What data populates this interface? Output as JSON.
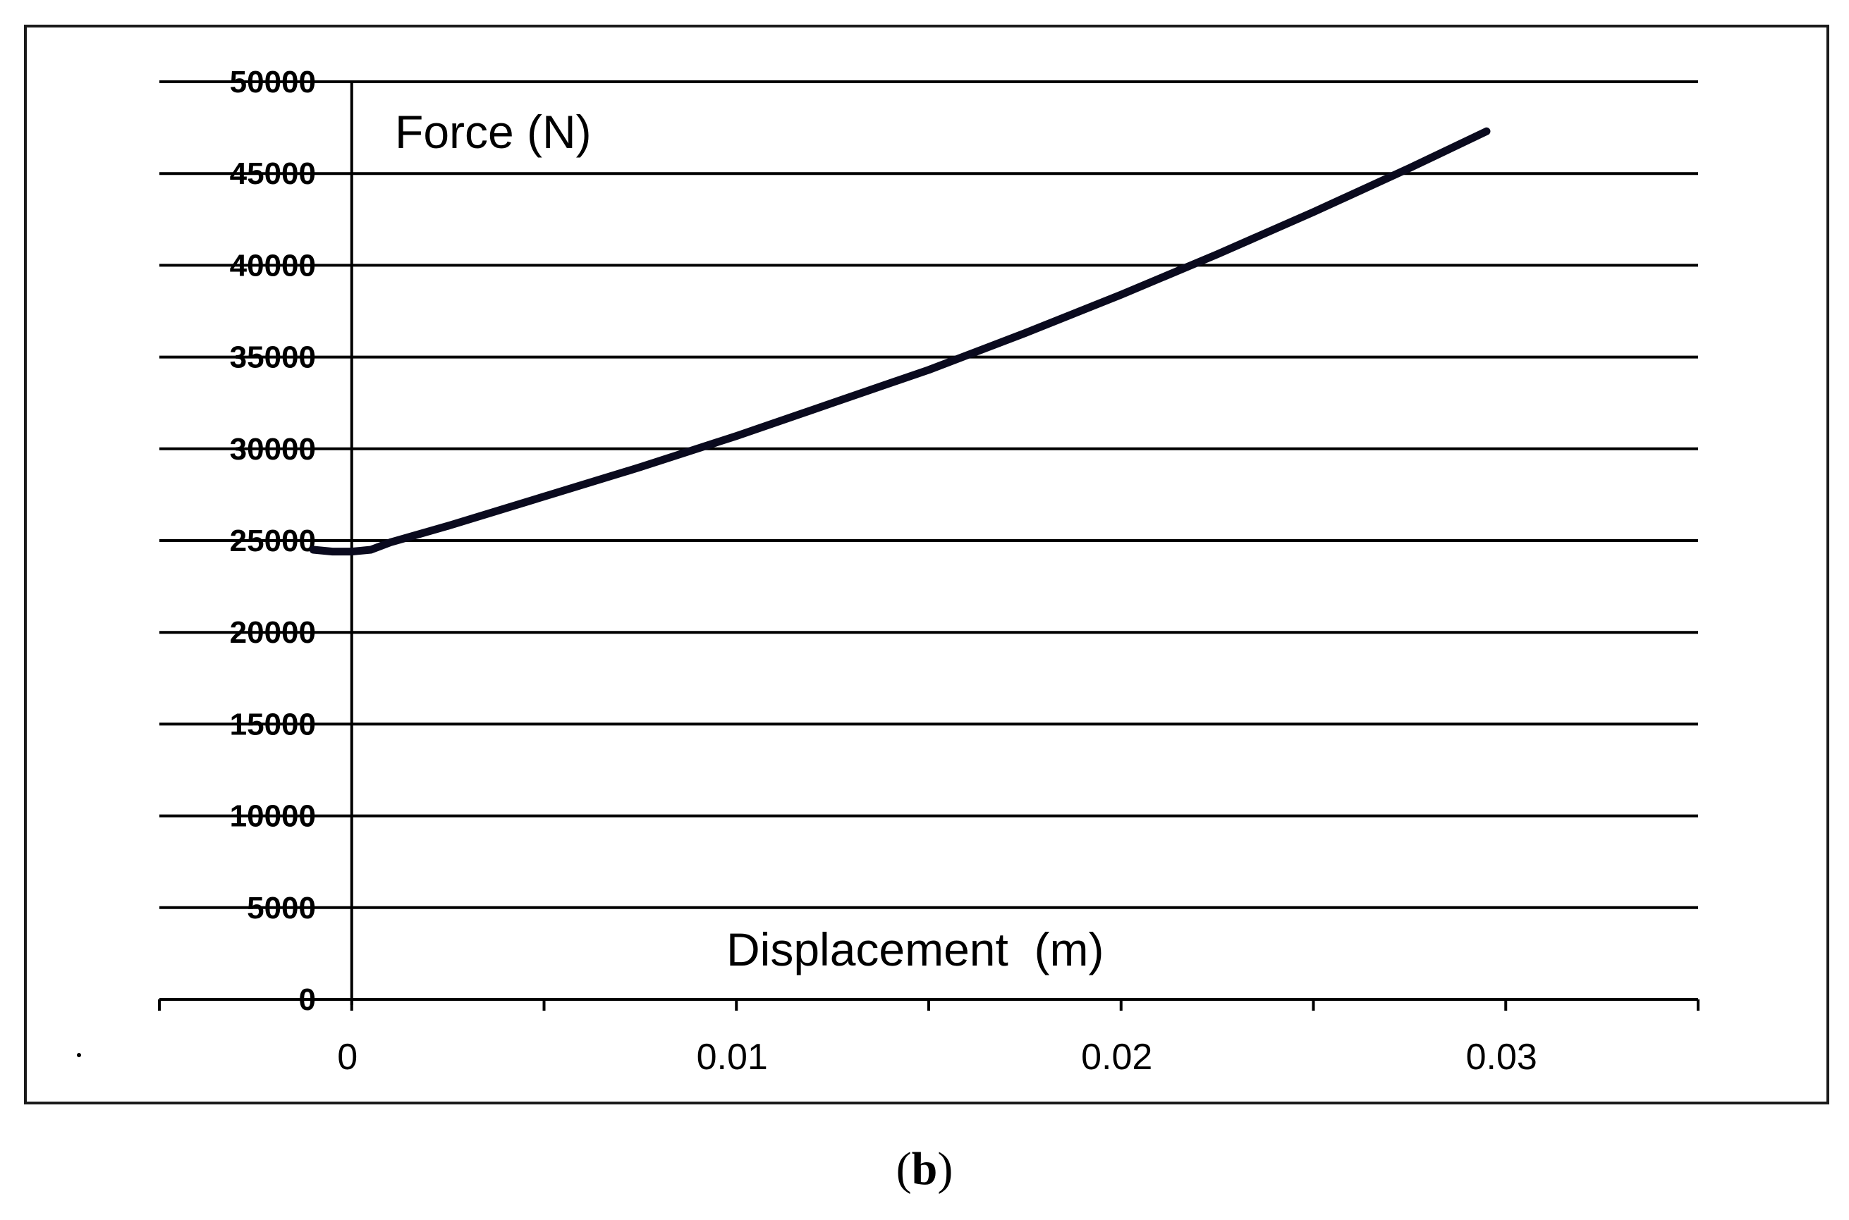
{
  "chart_data": {
    "type": "line",
    "title": "",
    "xlabel": "Displacement  (m)",
    "ylabel": "Force (N)",
    "xlim": [
      -0.005,
      0.035
    ],
    "ylim": [
      0,
      50000
    ],
    "grid": true,
    "x_ticks": [
      -0.005,
      0,
      0.005,
      0.01,
      0.015,
      0.02,
      0.025,
      0.03,
      0.035
    ],
    "x_tick_labels": [
      {
        "value": 0,
        "label": "0"
      },
      {
        "value": 0.01,
        "label": "0.01"
      },
      {
        "value": 0.02,
        "label": "0.02"
      },
      {
        "value": 0.03,
        "label": "0.03"
      }
    ],
    "y_ticks": [
      0,
      5000,
      10000,
      15000,
      20000,
      25000,
      30000,
      35000,
      40000,
      45000,
      50000
    ],
    "y_tick_labels": [
      "0",
      "5000",
      "10000",
      "15000",
      "20000",
      "25000",
      "30000",
      "35000",
      "40000",
      "45000",
      "50000"
    ],
    "series": [
      {
        "color": "#0a0a1e",
        "x": [
          -0.001,
          -0.0005,
          0,
          0.0005,
          0.001,
          0.0025,
          0.005,
          0.0075,
          0.01,
          0.0125,
          0.015,
          0.0175,
          0.02,
          0.0225,
          0.025,
          0.0275,
          0.0295
        ],
        "y": [
          24500,
          24400,
          24400,
          24500,
          24900,
          25800,
          27400,
          29000,
          30700,
          32500,
          34300,
          36300,
          38400,
          40600,
          42900,
          45300,
          47300
        ]
      }
    ]
  },
  "caption": {
    "open": "(",
    "letter": "b",
    "close": ")"
  }
}
